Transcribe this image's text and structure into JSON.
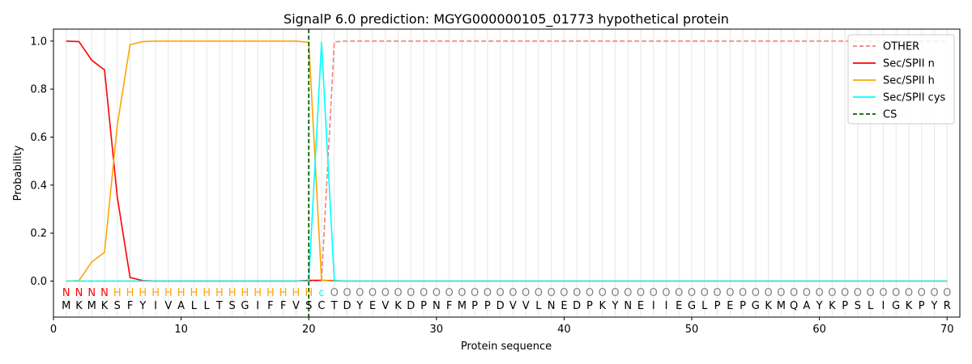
{
  "chart_data": {
    "type": "line",
    "title": "SignalP 6.0 prediction: MGYG000000105_01773 hypothetical protein",
    "xlabel": "Protein sequence",
    "ylabel": "Probability",
    "xlim": [
      0,
      71
    ],
    "ylim": [
      -0.15,
      1.05
    ],
    "xticks": [
      0,
      10,
      20,
      30,
      40,
      50,
      60,
      70
    ],
    "yticks": [
      "0.0",
      "0.2",
      "0.4",
      "0.6",
      "0.8",
      "1.0"
    ],
    "ytick_values": [
      0,
      0.2,
      0.4,
      0.6,
      0.8,
      1.0
    ],
    "grid": "vertical lines at each residue",
    "legend_position": "top-right",
    "sequence": [
      "M",
      "K",
      "M",
      "K",
      "S",
      "F",
      "Y",
      "I",
      "V",
      "A",
      "L",
      "L",
      "T",
      "S",
      "G",
      "I",
      "F",
      "F",
      "V",
      "S",
      "C",
      "T",
      "D",
      "Y",
      "E",
      "V",
      "K",
      "D",
      "P",
      "N",
      "F",
      "M",
      "P",
      "P",
      "D",
      "V",
      "V",
      "L",
      "N",
      "E",
      "D",
      "P",
      "K",
      "Y",
      "N",
      "E",
      "I",
      "I",
      "E",
      "G",
      "L",
      "P",
      "E",
      "P",
      "G",
      "K",
      "M",
      "Q",
      "A",
      "Y",
      "K",
      "P",
      "S",
      "L",
      "I",
      "G",
      "K",
      "P",
      "Y",
      "R"
    ],
    "annotation": [
      "N",
      "N",
      "N",
      "N",
      "H",
      "H",
      "H",
      "H",
      "H",
      "H",
      "H",
      "H",
      "H",
      "H",
      "H",
      "H",
      "H",
      "H",
      "H",
      "H",
      "c",
      "O",
      "O",
      "O",
      "O",
      "O",
      "O",
      "O",
      "O",
      "O",
      "O",
      "O",
      "O",
      "O",
      "O",
      "O",
      "O",
      "O",
      "O",
      "O",
      "O",
      "O",
      "O",
      "O",
      "O",
      "O",
      "O",
      "O",
      "O",
      "O",
      "O",
      "O",
      "O",
      "O",
      "O",
      "O",
      "O",
      "O",
      "O",
      "O",
      "O",
      "O",
      "O",
      "O",
      "O",
      "O",
      "O",
      "O",
      "O",
      "O"
    ],
    "annotation_colors": {
      "N": "#ff0000",
      "H": "#ffa500",
      "c": "#00ffff",
      "O": "#808080"
    },
    "cleavage_site": 20,
    "series": [
      {
        "name": "OTHER",
        "color": "#f08080",
        "dash": true,
        "values": [
          0,
          0,
          0,
          0,
          0,
          0,
          0,
          0,
          0,
          0,
          0,
          0,
          0,
          0,
          0,
          0,
          0,
          0,
          0,
          0,
          0.003,
          0.997,
          1,
          1,
          1,
          1,
          1,
          1,
          1,
          1,
          1,
          1,
          1,
          1,
          1,
          1,
          1,
          1,
          1,
          1,
          1,
          1,
          1,
          1,
          1,
          1,
          1,
          1,
          1,
          1,
          1,
          1,
          1,
          1,
          1,
          1,
          1,
          1,
          1,
          1,
          1,
          1,
          1,
          1,
          1,
          1,
          1,
          1,
          1,
          1
        ]
      },
      {
        "name": "Sec/SPII n",
        "color": "#ff0000",
        "dash": false,
        "values": [
          1.0,
          0.998,
          0.92,
          0.88,
          0.35,
          0.015,
          0.002,
          0,
          0,
          0,
          0,
          0,
          0,
          0,
          0,
          0,
          0,
          0,
          0,
          0.003,
          0.003,
          0.002,
          0,
          0,
          0,
          0,
          0,
          0,
          0,
          0,
          0,
          0,
          0,
          0,
          0,
          0,
          0,
          0,
          0,
          0,
          0,
          0,
          0,
          0,
          0,
          0,
          0,
          0,
          0,
          0,
          0,
          0,
          0,
          0,
          0,
          0,
          0,
          0,
          0,
          0,
          0,
          0,
          0,
          0,
          0,
          0,
          0,
          0,
          0,
          0
        ]
      },
      {
        "name": "Sec/SPII h",
        "color": "#ffa500",
        "dash": false,
        "values": [
          0,
          0.002,
          0.08,
          0.12,
          0.65,
          0.985,
          0.998,
          1,
          1,
          1,
          1,
          1,
          1,
          1,
          1,
          1,
          1,
          1,
          1,
          0.995,
          0.003,
          0,
          0,
          0,
          0,
          0,
          0,
          0,
          0,
          0,
          0,
          0,
          0,
          0,
          0,
          0,
          0,
          0,
          0,
          0,
          0,
          0,
          0,
          0,
          0,
          0,
          0,
          0,
          0,
          0,
          0,
          0,
          0,
          0,
          0,
          0,
          0,
          0,
          0,
          0,
          0,
          0,
          0,
          0,
          0,
          0,
          0,
          0,
          0,
          0
        ]
      },
      {
        "name": "Sec/SPII cys",
        "color": "#00ffff",
        "dash": false,
        "values": [
          0,
          0,
          0,
          0,
          0,
          0,
          0,
          0,
          0,
          0,
          0,
          0,
          0,
          0,
          0,
          0,
          0,
          0,
          0,
          0,
          0.995,
          0.001,
          0,
          0,
          0,
          0,
          0,
          0,
          0,
          0,
          0,
          0,
          0,
          0,
          0,
          0,
          0,
          0,
          0,
          0,
          0,
          0,
          0,
          0,
          0,
          0,
          0,
          0,
          0,
          0,
          0,
          0,
          0,
          0,
          0,
          0,
          0,
          0,
          0,
          0,
          0,
          0,
          0,
          0,
          0,
          0,
          0,
          0,
          0,
          0
        ]
      },
      {
        "name": "CS",
        "color": "#006400",
        "dash": true,
        "vertical_at": 20
      }
    ]
  }
}
